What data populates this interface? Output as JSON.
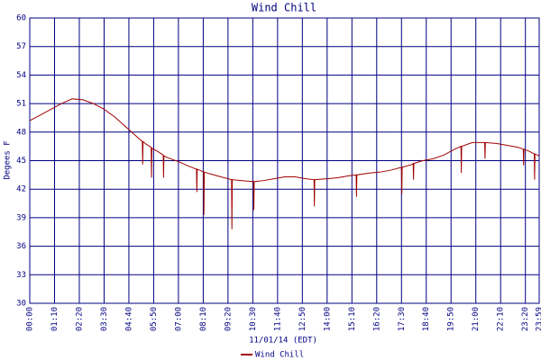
{
  "chart_data": {
    "type": "line",
    "title": "Wind Chill",
    "xlabel": "11/01/14 (EDT)",
    "ylabel": "Degees F",
    "x": [
      0,
      30,
      60,
      90,
      120,
      150,
      180,
      210,
      240,
      270,
      300,
      318,
      319,
      320,
      330,
      343,
      344,
      345,
      360,
      377,
      378,
      379,
      390,
      420,
      450,
      471,
      472,
      473,
      480,
      491,
      492,
      493,
      510,
      540,
      570,
      571,
      572,
      600,
      630,
      632,
      633,
      634,
      660,
      690,
      720,
      750,
      780,
      803,
      804,
      805,
      840,
      870,
      900,
      922,
      923,
      924,
      960,
      990,
      1020,
      1050,
      1051,
      1052,
      1080,
      1083,
      1084,
      1085,
      1110,
      1140,
      1170,
      1200,
      1218,
      1219,
      1220,
      1250,
      1285,
      1286,
      1287,
      1320,
      1350,
      1380,
      1394,
      1395,
      1396,
      1410,
      1425,
      1426,
      1427,
      1439
    ],
    "series": [
      {
        "name": "Wind Chill",
        "color": "#a00000",
        "values": [
          49.2,
          49.8,
          50.4,
          51.0,
          51.5,
          51.4,
          51.0,
          50.4,
          49.6,
          48.6,
          47.6,
          47.0,
          44.6,
          47.0,
          46.7,
          46.4,
          43.2,
          46.3,
          46.0,
          45.6,
          43.2,
          45.5,
          45.3,
          44.9,
          44.4,
          44.1,
          41.7,
          44.1,
          44.0,
          43.8,
          39.3,
          43.8,
          43.6,
          43.3,
          43.0,
          37.8,
          43.0,
          42.9,
          42.8,
          42.8,
          39.8,
          42.8,
          42.9,
          43.1,
          43.3,
          43.3,
          43.1,
          43.0,
          40.2,
          43.0,
          43.1,
          43.2,
          43.4,
          43.5,
          41.2,
          43.5,
          43.7,
          43.8,
          44.0,
          44.3,
          41.5,
          44.3,
          44.6,
          44.7,
          43.0,
          44.7,
          45.0,
          45.2,
          45.6,
          46.2,
          46.5,
          43.7,
          46.5,
          46.9,
          46.9,
          45.2,
          46.9,
          46.8,
          46.6,
          46.4,
          46.2,
          44.5,
          46.2,
          46.0,
          45.7,
          43.0,
          45.7,
          45.5
        ]
      }
    ],
    "xlim": [
      0,
      1439
    ],
    "xticks": [
      {
        "value": 0,
        "label": "00:00"
      },
      {
        "value": 70,
        "label": "01:10"
      },
      {
        "value": 140,
        "label": "02:20"
      },
      {
        "value": 210,
        "label": "03:30"
      },
      {
        "value": 280,
        "label": "04:40"
      },
      {
        "value": 350,
        "label": "05:50"
      },
      {
        "value": 420,
        "label": "07:00"
      },
      {
        "value": 490,
        "label": "08:10"
      },
      {
        "value": 560,
        "label": "09:20"
      },
      {
        "value": 630,
        "label": "10:30"
      },
      {
        "value": 700,
        "label": "11:40"
      },
      {
        "value": 770,
        "label": "12:50"
      },
      {
        "value": 840,
        "label": "14:00"
      },
      {
        "value": 910,
        "label": "15:10"
      },
      {
        "value": 980,
        "label": "16:20"
      },
      {
        "value": 1050,
        "label": "17:30"
      },
      {
        "value": 1120,
        "label": "18:40"
      },
      {
        "value": 1190,
        "label": "19:50"
      },
      {
        "value": 1260,
        "label": "21:00"
      },
      {
        "value": 1330,
        "label": "22:10"
      },
      {
        "value": 1400,
        "label": "23:20"
      },
      {
        "value": 1439,
        "label": "23:59"
      }
    ],
    "ylim": [
      30,
      60
    ],
    "yticks": [
      30,
      33,
      36,
      39,
      42,
      45,
      48,
      51,
      54,
      57,
      60
    ],
    "grid": true
  }
}
